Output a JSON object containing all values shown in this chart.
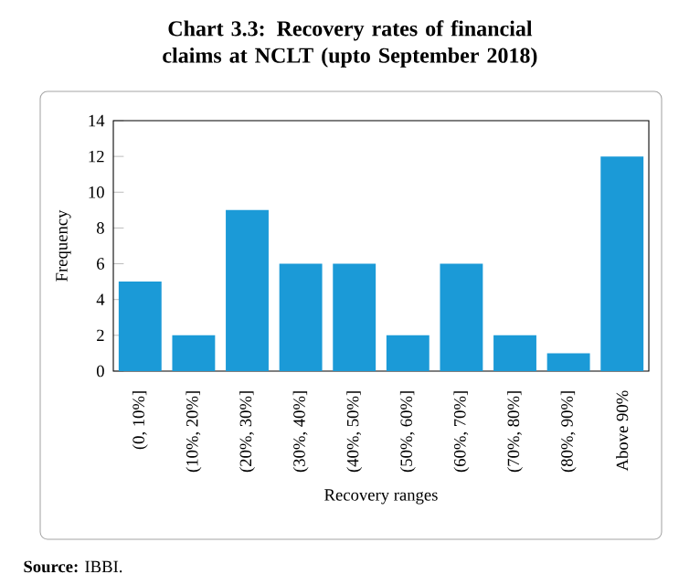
{
  "chart_data": {
    "type": "bar",
    "title": "Chart 3.3: Recovery rates of financial claims at NCLT (upto September 2018)",
    "xlabel": "Recovery ranges",
    "ylabel": "Frequency",
    "categories": [
      "(0, 10%]",
      "(10%, 20%]",
      "(20%, 30%]",
      "(30%, 40%]",
      "(40%, 50%]",
      "(50%, 60%]",
      "(60%, 70%]",
      "(70%, 80%]",
      "(80%, 90%]",
      "Above 90%"
    ],
    "values": [
      5,
      2,
      9,
      6,
      6,
      2,
      6,
      2,
      1,
      12
    ],
    "color": "#1b9ad7",
    "ylim": [
      0,
      14
    ],
    "yticks": [
      0,
      2,
      4,
      6,
      8,
      10,
      12,
      14
    ],
    "grid": false,
    "annotations": [
      "**Source:** IBBI."
    ]
  }
}
